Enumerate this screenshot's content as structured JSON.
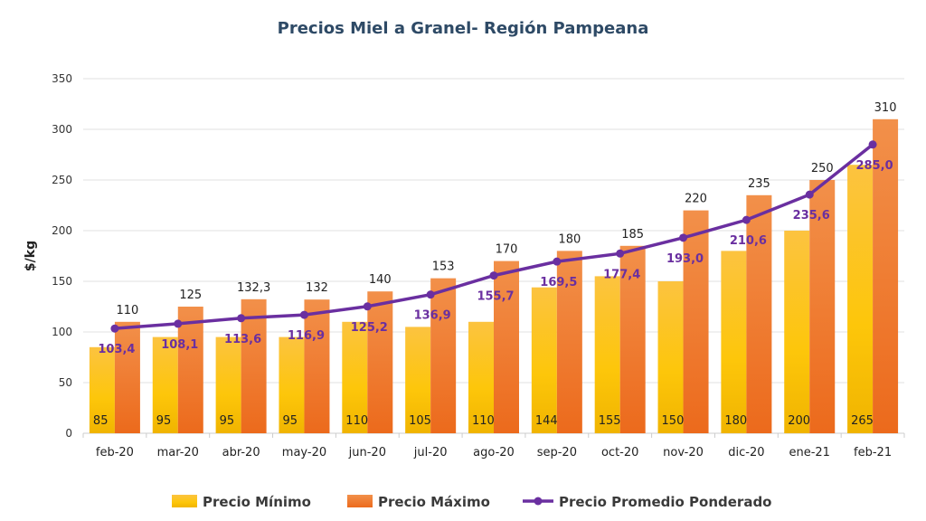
{
  "chart_data": {
    "type": "bar",
    "title": "Precios Miel a Granel- Región Pampeana",
    "ylabel": "$/kg",
    "xlabel": "",
    "ylim": [
      0,
      350
    ],
    "yticks": [
      0,
      50,
      100,
      150,
      200,
      250,
      300,
      350
    ],
    "grid": true,
    "legend_position": "bottom",
    "categories": [
      "feb-20",
      "mar-20",
      "abr-20",
      "may-20",
      "jun-20",
      "jul-20",
      "ago-20",
      "sep-20",
      "oct-20",
      "nov-20",
      "dic-20",
      "ene-21",
      "feb-21"
    ],
    "series": [
      {
        "name": "Precio Mínimo",
        "type": "bar",
        "color": "#f9bf1e",
        "values": [
          85,
          95,
          95,
          95,
          110,
          105,
          110,
          144,
          155,
          150,
          180,
          200,
          265
        ],
        "labels": [
          "85",
          "95",
          "95",
          "95",
          "110",
          "105",
          "110",
          "144",
          "155",
          "150",
          "180",
          "200",
          "265"
        ]
      },
      {
        "name": "Precio Máximo",
        "type": "bar",
        "color": "#ef7a2a",
        "values": [
          110,
          125,
          132.3,
          132,
          140,
          153,
          170,
          180,
          185,
          220,
          235,
          250,
          310
        ],
        "labels": [
          "110",
          "125",
          "132,3",
          "132",
          "140",
          "153",
          "170",
          "180",
          "185",
          "220",
          "235",
          "250",
          "310"
        ]
      },
      {
        "name": "Precio Promedio Ponderado",
        "type": "line",
        "color": "#6a2fa0",
        "values": [
          103.4,
          108.1,
          113.6,
          116.9,
          125.2,
          136.9,
          155.7,
          169.5,
          177.4,
          193.0,
          210.6,
          235.6,
          285.0
        ],
        "labels": [
          "103,4",
          "108,1",
          "113,6",
          "116,9",
          "125,2",
          "136,9",
          "155,7",
          "169,5",
          "177,4",
          "193,0",
          "210,6",
          "235,6",
          "285,0"
        ]
      }
    ]
  }
}
